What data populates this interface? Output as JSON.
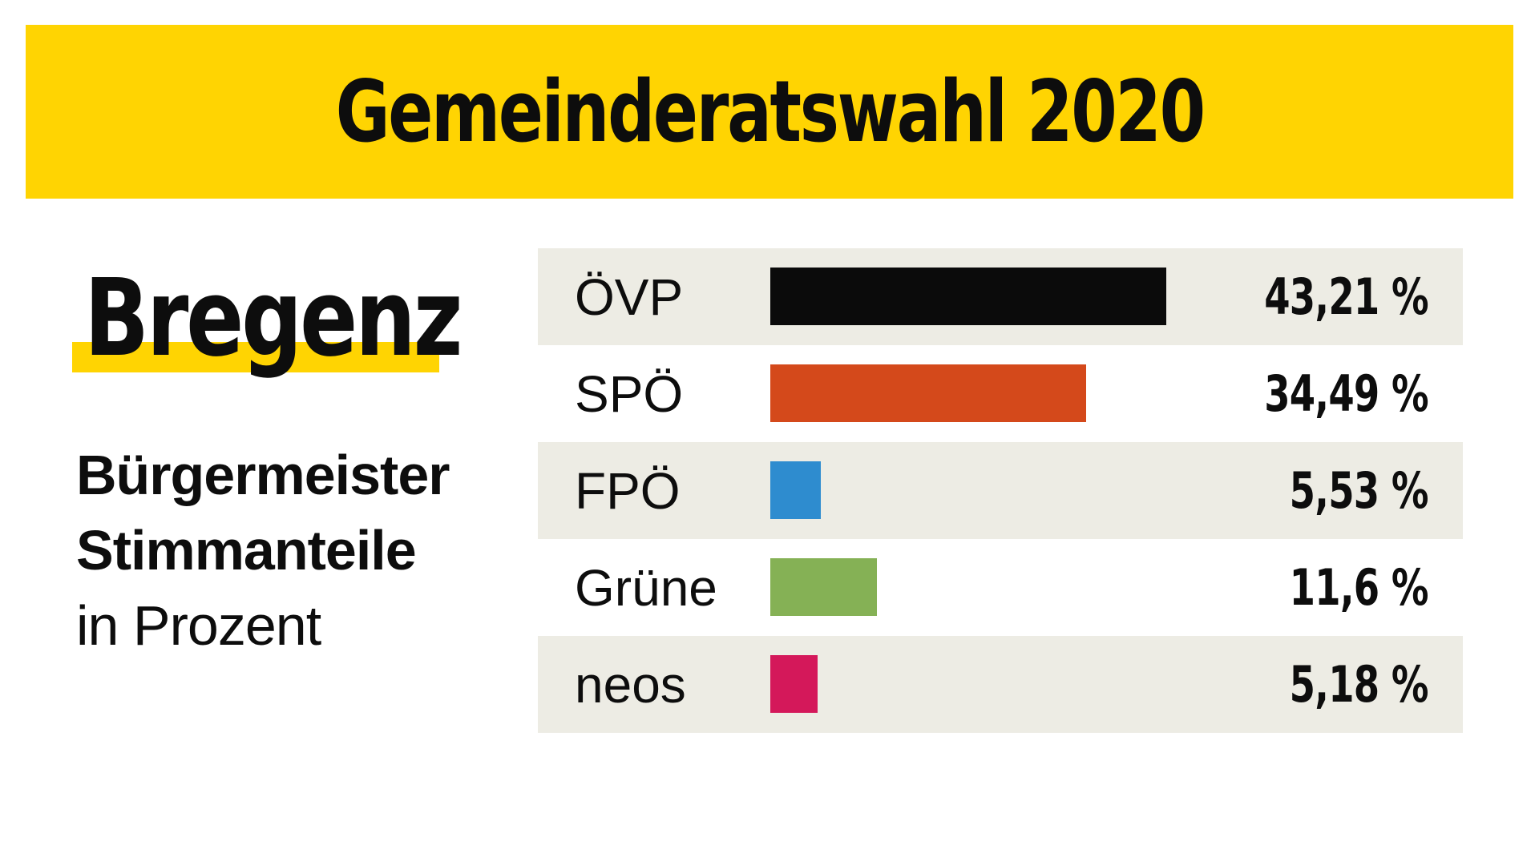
{
  "banner": {
    "title": "Gemeinderatswahl 2020",
    "bg_color": "#FFD402",
    "text_color": "#0D0D0D"
  },
  "sidebar": {
    "city": "Bregenz",
    "city_highlight_color": "#FFD402",
    "subtitle_line1": "Bürgermeister",
    "subtitle_line2": "Stimmanteile",
    "subtitle_line3": "in Prozent"
  },
  "chart_data": {
    "type": "bar",
    "orientation": "horizontal",
    "title": "Gemeinderatswahl 2020",
    "categories": [
      "ÖVP",
      "SPÖ",
      "FPÖ",
      "Grüne",
      "neos"
    ],
    "values": [
      43.21,
      34.49,
      5.53,
      11.6,
      5.18
    ],
    "value_labels": [
      "43,21 %",
      "34,49 %",
      "5,53 %",
      "11,6 %",
      "5,18 %"
    ],
    "bar_colors": [
      "#0B0B0B",
      "#D4491B",
      "#2E8CCF",
      "#85B155",
      "#D4185A"
    ],
    "row_stripe_color": "#EDECE4",
    "row_alt_color": "#FFFFFF",
    "value_label_position": "right-aligned",
    "grid": false,
    "legend": false,
    "xlim": [
      0,
      75.6
    ]
  },
  "page": {
    "background": "#FFFFFF"
  }
}
